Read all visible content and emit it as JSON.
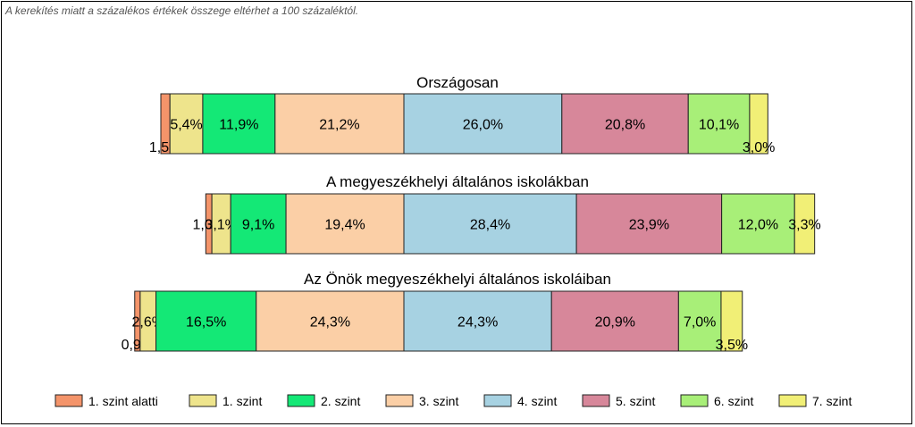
{
  "note": "A kerekítés miatt a százalékos értékek összege eltérhet a 100 százaléktól.",
  "chart_data": {
    "type": "bar",
    "orientation": "horizontal-stacked",
    "categories": [
      "1. szint alatti",
      "1. szint",
      "2. szint",
      "3. szint",
      "4. szint",
      "5. szint",
      "6. szint",
      "7. szint"
    ],
    "colors": [
      "#f4946a",
      "#eee48c",
      "#14e876",
      "#fbcfa6",
      "#a7d2e2",
      "#d7879a",
      "#a8ef78",
      "#f1ef76"
    ],
    "legend_position": "bottom",
    "value_labels": true,
    "rows": [
      {
        "title": "Országosan",
        "values": [
          1.5,
          5.4,
          11.9,
          21.2,
          26.0,
          20.8,
          10.1,
          3.0
        ],
        "labels": [
          "1,5%",
          "5,4%",
          "11,9%",
          "21,2%",
          "26,0%",
          "20,8%",
          "10,1%",
          "3,0%"
        ]
      },
      {
        "title": "A megyeszékhelyi általános iskolákban",
        "values": [
          1.0,
          3.1,
          9.1,
          19.4,
          28.4,
          23.9,
          12.0,
          3.3
        ],
        "labels": [
          "1,0%",
          "3,1%",
          "9,1%",
          "19,4%",
          "28,4%",
          "23,9%",
          "12,0%",
          "3,3%"
        ]
      },
      {
        "title": "Az Önök megyeszékhelyi általános iskoláiban",
        "values": [
          0.9,
          2.6,
          16.5,
          24.3,
          24.3,
          20.9,
          7.0,
          3.5
        ],
        "labels": [
          "0,9%",
          "2,6%",
          "16,5%",
          "24,3%",
          "24,3%",
          "20,9%",
          "7,0%",
          "3,5%"
        ]
      }
    ]
  }
}
